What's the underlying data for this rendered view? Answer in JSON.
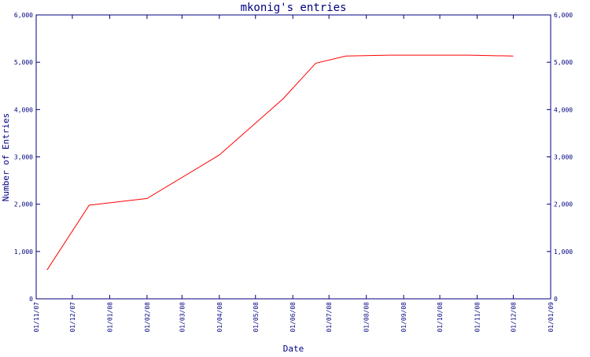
{
  "chart_data": {
    "type": "line",
    "title": "mkonig's entries",
    "xlabel": "Date",
    "ylabel": "Number of Entries",
    "x_ticks": [
      "01/11/07",
      "01/12/07",
      "01/01/08",
      "01/02/08",
      "01/03/08",
      "01/04/08",
      "01/05/08",
      "01/06/08",
      "01/07/08",
      "01/08/08",
      "01/09/08",
      "01/10/08",
      "01/11/08",
      "01/12/08",
      "01/01/09"
    ],
    "y_ticks": [
      "0",
      "1,000",
      "2,000",
      "3,000",
      "4,000",
      "5,000",
      "6,000"
    ],
    "xlim": [
      "2007-11-01",
      "2009-01-01"
    ],
    "ylim": [
      0,
      6000
    ],
    "grid": false,
    "series": [
      {
        "color": "#ff0000",
        "points": [
          {
            "x": "2007-11-10",
            "y": 610
          },
          {
            "x": "2007-12-15",
            "y": 1980
          },
          {
            "x": "2008-02-01",
            "y": 2120
          },
          {
            "x": "2008-04-01",
            "y": 3040
          },
          {
            "x": "2008-05-24",
            "y": 4230
          },
          {
            "x": "2008-06-20",
            "y": 4980
          },
          {
            "x": "2008-07-15",
            "y": 5130
          },
          {
            "x": "2008-08-20",
            "y": 5150
          },
          {
            "x": "2008-10-25",
            "y": 5150
          },
          {
            "x": "2008-12-01",
            "y": 5130
          }
        ]
      }
    ],
    "colors": {
      "axis": "#000080",
      "text": "#000080"
    }
  }
}
